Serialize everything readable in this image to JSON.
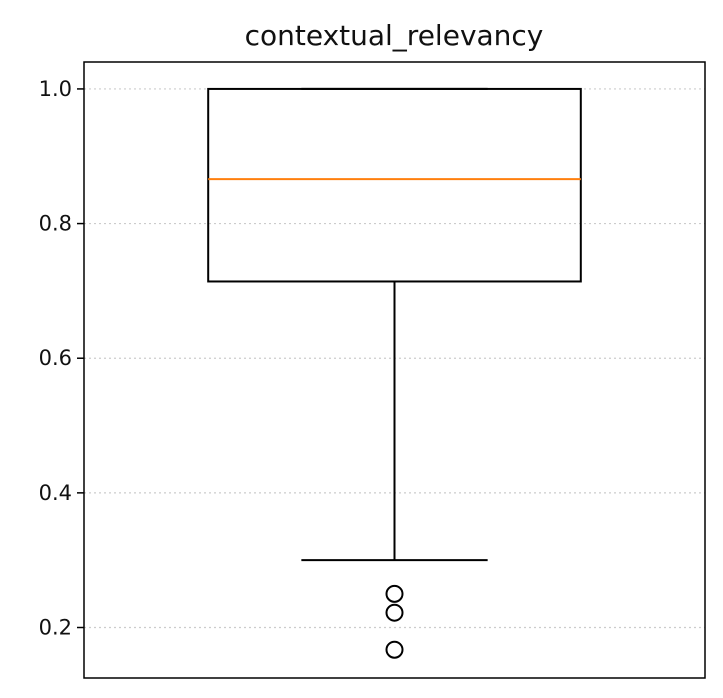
{
  "chart_data": {
    "type": "box",
    "title": "contextual_relevancy",
    "xlabel": "",
    "ylabel": "",
    "ylim": [
      0.125,
      1.04
    ],
    "yticks": [
      0.2,
      0.4,
      0.6,
      0.8,
      1.0
    ],
    "ytick_labels": [
      "0.2",
      "0.4",
      "0.6",
      "0.8",
      "1.0"
    ],
    "grid": "y-dotted",
    "boxes": [
      {
        "whisker_low": 0.3,
        "q1": 0.714,
        "median": 0.866,
        "q3": 1.0,
        "whisker_high": 1.0,
        "outliers": [
          0.25,
          0.222,
          0.167
        ]
      }
    ],
    "colors": {
      "box": "#000000",
      "median": "#ff7f0e",
      "grid": "#cccccc"
    }
  }
}
